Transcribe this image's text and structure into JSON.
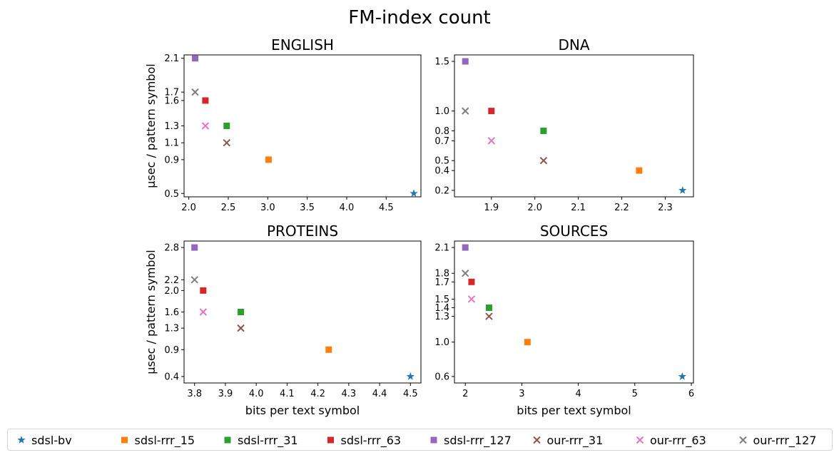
{
  "figure": {
    "suptitle": "FM-index count",
    "legend": [
      {
        "label": "sdsl-bv",
        "color": "#1f77b4",
        "marker": "star"
      },
      {
        "label": "sdsl-rrr_15",
        "color": "#ff7f0e",
        "marker": "square"
      },
      {
        "label": "sdsl-rrr_31",
        "color": "#2ca02c",
        "marker": "square"
      },
      {
        "label": "sdsl-rrr_63",
        "color": "#d62728",
        "marker": "square"
      },
      {
        "label": "sdsl-rrr_127",
        "color": "#9467bd",
        "marker": "square"
      },
      {
        "label": "our-rrr_31",
        "color": "#8c564b",
        "marker": "x"
      },
      {
        "label": "our-rrr_63",
        "color": "#e377c2",
        "marker": "x"
      },
      {
        "label": "our-rrr_127",
        "color": "#7f7f7f",
        "marker": "x"
      }
    ],
    "legend_position": "bottom"
  },
  "chart_data": [
    {
      "type": "scatter",
      "title": "ENGLISH",
      "xlabel": "",
      "ylabel": "µsec / pattern symbol",
      "xlim": [
        1.94,
        4.94
      ],
      "ylim": [
        0.46,
        2.14
      ],
      "xticks": [
        "2.0",
        "2.5",
        "3.0",
        "3.5",
        "4.0",
        "4.5"
      ],
      "yticks": [
        "0.5",
        "0.9",
        "1.1",
        "1.3",
        "1.6",
        "1.7",
        "2.1"
      ],
      "grid": false,
      "series": [
        {
          "name": "sdsl-bv",
          "x": 4.85,
          "y": 0.5
        },
        {
          "name": "sdsl-rrr_15",
          "x": 3.01,
          "y": 0.9
        },
        {
          "name": "sdsl-rrr_31",
          "x": 2.48,
          "y": 1.3
        },
        {
          "name": "sdsl-rrr_63",
          "x": 2.21,
          "y": 1.6
        },
        {
          "name": "sdsl-rrr_127",
          "x": 2.08,
          "y": 2.1
        },
        {
          "name": "our-rrr_31",
          "x": 2.48,
          "y": 1.1
        },
        {
          "name": "our-rrr_63",
          "x": 2.21,
          "y": 1.3
        },
        {
          "name": "our-rrr_127",
          "x": 2.08,
          "y": 1.7
        }
      ]
    },
    {
      "type": "scatter",
      "title": "DNA",
      "xlabel": "",
      "ylabel": "",
      "xlim": [
        1.815,
        2.365
      ],
      "ylim": [
        0.135,
        1.565
      ],
      "xticks": [
        "1.9",
        "2.0",
        "2.1",
        "2.2",
        "2.3"
      ],
      "yticks": [
        "0.2",
        "0.4",
        "0.5",
        "0.7",
        "0.8",
        "1.0",
        "1.5"
      ],
      "grid": false,
      "series": [
        {
          "name": "sdsl-bv",
          "x": 2.34,
          "y": 0.2
        },
        {
          "name": "sdsl-rrr_15",
          "x": 2.24,
          "y": 0.4
        },
        {
          "name": "sdsl-rrr_31",
          "x": 2.02,
          "y": 0.8
        },
        {
          "name": "sdsl-rrr_63",
          "x": 1.9,
          "y": 1.0
        },
        {
          "name": "sdsl-rrr_127",
          "x": 1.84,
          "y": 1.5
        },
        {
          "name": "our-rrr_31",
          "x": 2.02,
          "y": 0.5
        },
        {
          "name": "our-rrr_63",
          "x": 1.9,
          "y": 0.7
        },
        {
          "name": "our-rrr_127",
          "x": 1.84,
          "y": 1.0
        }
      ]
    },
    {
      "type": "scatter",
      "title": "PROTEINS",
      "xlabel": "bits per text symbol",
      "ylabel": "µsec / pattern symbol",
      "xlim": [
        3.766,
        4.534
      ],
      "ylim": [
        0.28,
        2.92
      ],
      "xticks": [
        "3.8",
        "3.9",
        "4.0",
        "4.1",
        "4.2",
        "4.3",
        "4.4",
        "4.5"
      ],
      "yticks": [
        "0.4",
        "0.9",
        "1.3",
        "1.6",
        "2.0",
        "2.2",
        "2.8"
      ],
      "grid": false,
      "series": [
        {
          "name": "sdsl-bv",
          "x": 4.5,
          "y": 0.4
        },
        {
          "name": "sdsl-rrr_15",
          "x": 4.235,
          "y": 0.9
        },
        {
          "name": "sdsl-rrr_31",
          "x": 3.95,
          "y": 1.6
        },
        {
          "name": "sdsl-rrr_63",
          "x": 3.828,
          "y": 2.0
        },
        {
          "name": "sdsl-rrr_127",
          "x": 3.8,
          "y": 2.8
        },
        {
          "name": "our-rrr_31",
          "x": 3.95,
          "y": 1.3
        },
        {
          "name": "our-rrr_63",
          "x": 3.828,
          "y": 1.6
        },
        {
          "name": "our-rrr_127",
          "x": 3.8,
          "y": 2.2
        }
      ]
    },
    {
      "type": "scatter",
      "title": "SOURCES",
      "xlabel": "bits per text symbol",
      "ylabel": "",
      "xlim": [
        1.808,
        6.038
      ],
      "ylim": [
        0.525,
        2.175
      ],
      "xticks": [
        "2",
        "3",
        "4",
        "5",
        "6"
      ],
      "yticks": [
        "0.6",
        "1.0",
        "1.3",
        "1.4",
        "1.5",
        "1.7",
        "1.8",
        "2.1"
      ],
      "grid": false,
      "series": [
        {
          "name": "sdsl-bv",
          "x": 5.84,
          "y": 0.6
        },
        {
          "name": "sdsl-rrr_15",
          "x": 3.1,
          "y": 1.0
        },
        {
          "name": "sdsl-rrr_31",
          "x": 2.42,
          "y": 1.4
        },
        {
          "name": "sdsl-rrr_63",
          "x": 2.11,
          "y": 1.7
        },
        {
          "name": "sdsl-rrr_127",
          "x": 2.0,
          "y": 2.1
        },
        {
          "name": "our-rrr_31",
          "x": 2.42,
          "y": 1.3
        },
        {
          "name": "our-rrr_63",
          "x": 2.11,
          "y": 1.5
        },
        {
          "name": "our-rrr_127",
          "x": 2.0,
          "y": 1.8
        }
      ]
    }
  ]
}
